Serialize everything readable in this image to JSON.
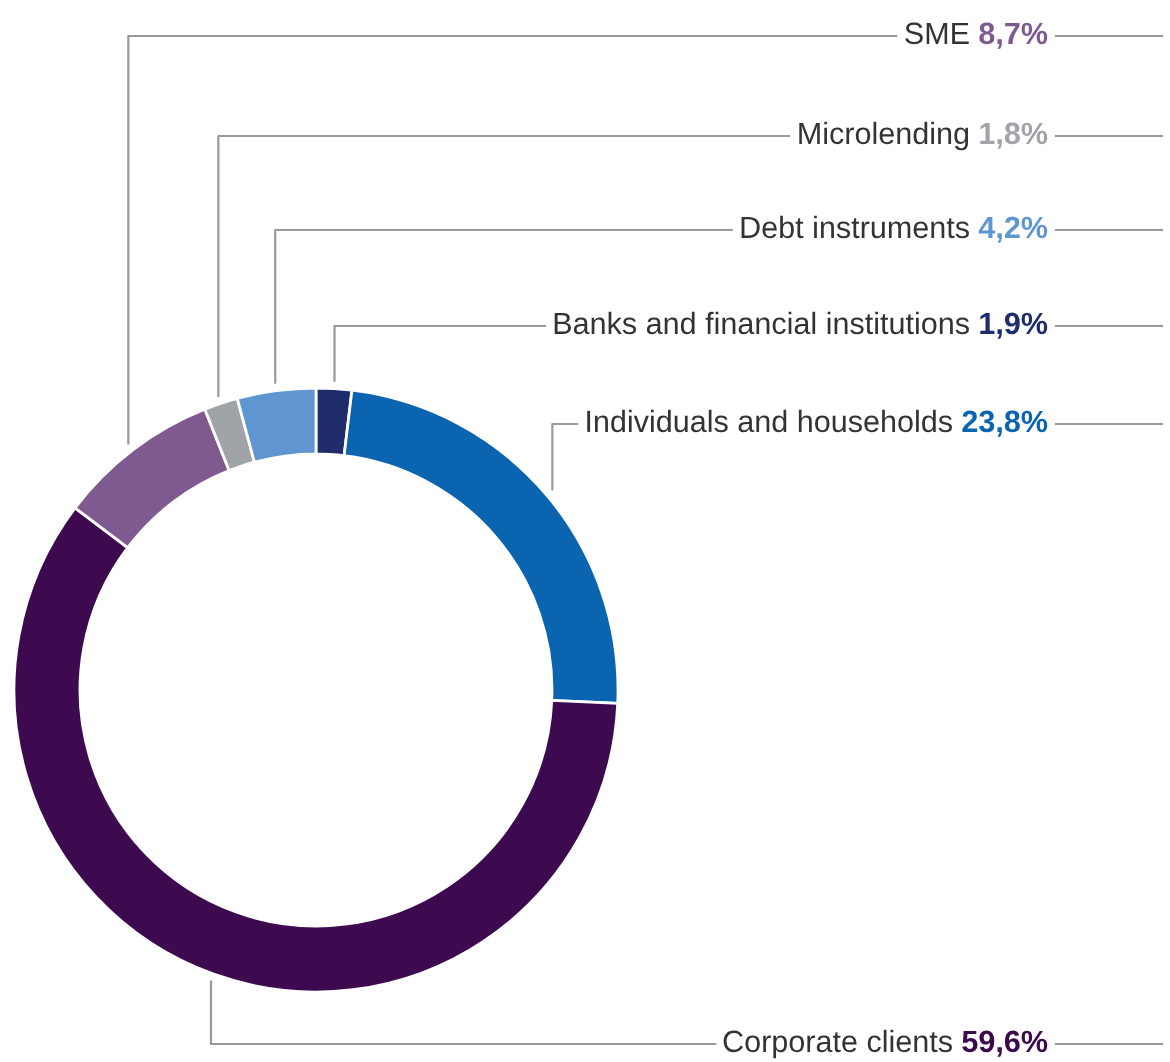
{
  "chart_data": {
    "type": "donut",
    "categories": [
      "Banks and financial institutions",
      "Individuals and households",
      "Corporate clients",
      "SME",
      "Microlending",
      "Debt instruments"
    ],
    "values": [
      1.9,
      23.8,
      59.6,
      8.7,
      1.8,
      4.2
    ],
    "value_labels": [
      "1,9%",
      "23,8%",
      "59,6%",
      "8,7%",
      "1,8%",
      "4,2%"
    ],
    "colors": [
      "#1f2d6b",
      "#0a64b0",
      "#3d0a50",
      "#7e5a91",
      "#a0a3a8",
      "#5f96d2"
    ],
    "legend": false
  }
}
